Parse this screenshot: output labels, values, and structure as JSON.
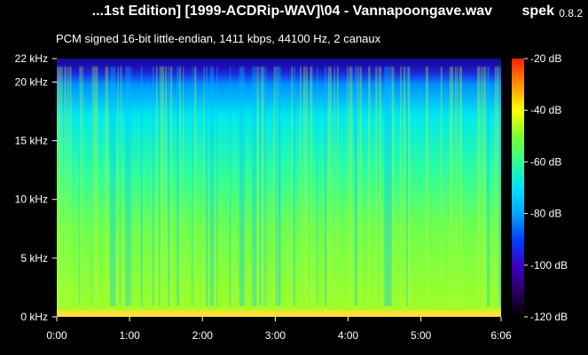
{
  "header": {
    "file_title": "...1st Edition] [1999-ACDRip-WAV]\\04 - Vannapoongave.wav",
    "app_name": "spek",
    "app_version": "0.8.2",
    "stream_info": "PCM signed 16-bit little-endian, 1411 kbps, 44100 Hz, 2 canaux"
  },
  "colors": {
    "background": "#000000",
    "text": "#ffffff",
    "colormap": [
      "#000000",
      "#2a0062",
      "#3a00c8",
      "#0040ff",
      "#00a8ff",
      "#00e0ff",
      "#2fff90",
      "#7cff30",
      "#ffff00",
      "#ff9000",
      "#ff2000"
    ]
  },
  "chart_data": {
    "type": "heatmap",
    "x_axis": {
      "unit": "time",
      "range": [
        "0:00",
        "6:06"
      ],
      "tick_labels": [
        "0:00",
        "1:00",
        "2:00",
        "3:00",
        "4:00",
        "5:00",
        "6:06"
      ],
      "tick_values_seconds": [
        0,
        60,
        120,
        180,
        240,
        300,
        366
      ]
    },
    "y_axis": {
      "unit": "kHz",
      "range": [
        0,
        22
      ],
      "tick_labels": [
        "0 kHz",
        "5 kHz",
        "10 kHz",
        "15 kHz",
        "20 kHz",
        "22 kHz"
      ],
      "tick_values": [
        0,
        5,
        10,
        15,
        20,
        22
      ]
    },
    "colorbar": {
      "unit": "dB",
      "range": [
        -120,
        -20
      ],
      "tick_labels": [
        "-20 dB",
        "-40 dB",
        "-60 dB",
        "-80 dB",
        "-100 dB",
        "-120 dB"
      ],
      "tick_values": [
        -20,
        -40,
        -60,
        -80,
        -100,
        -120
      ]
    }
  }
}
